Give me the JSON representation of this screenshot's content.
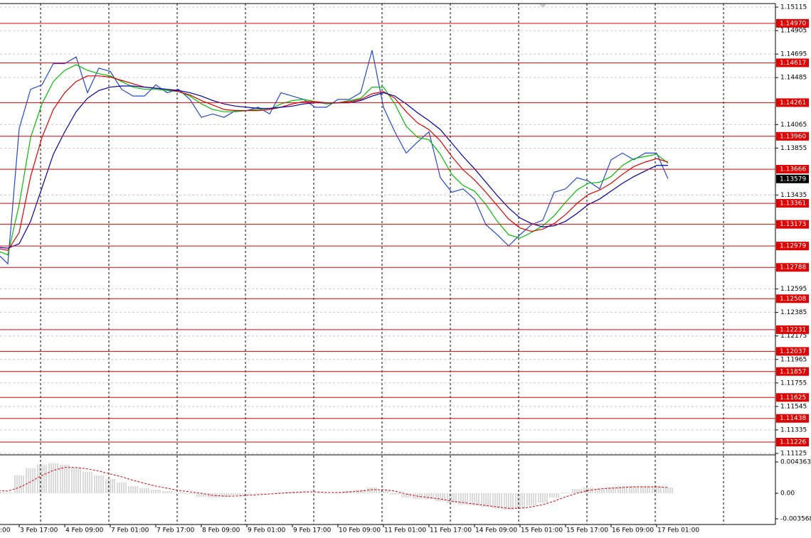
{
  "chart_data": [
    {
      "type": "line",
      "x": [
        ":00",
        null,
        null,
        null,
        "3 Feb 17:00",
        null,
        null,
        null,
        "4 Feb 09:00",
        null,
        null,
        null,
        "7 Feb 01:00",
        null,
        null,
        null,
        "7 Feb 17:00",
        null,
        null,
        null,
        "8 Feb 09:00",
        null,
        null,
        null,
        "9 Feb 01:00",
        null,
        null,
        null,
        "9 Feb 17:00",
        null,
        null,
        null,
        "10 Feb 09:00",
        null,
        null,
        null,
        "11 Feb 01:00",
        null,
        null,
        null,
        "11 Feb 17:00",
        null,
        null,
        null,
        "14 Feb 09:00",
        null,
        null,
        null,
        "15 Feb 01:00",
        null,
        null,
        null,
        "15 Feb 17:00",
        null,
        null,
        null,
        "16 Feb 09:00",
        null,
        null,
        null,
        "17 Feb 01:00",
        null
      ],
      "series": [
        {
          "color": "#2448d8",
          "values": [
            1.1295,
            1.1295,
            1.1292,
            1.1282,
            1.1403,
            1.1438,
            1.1442,
            1.1461,
            1.1461,
            1.1467,
            1.1435,
            1.1457,
            1.1454,
            1.1438,
            1.1432,
            1.1432,
            1.1442,
            1.1435,
            1.1438,
            1.1429,
            1.1413,
            1.1416,
            1.1413,
            1.1419,
            1.1419,
            1.1422,
            1.1416,
            1.1435,
            1.1432,
            1.1429,
            1.1422,
            1.1422,
            1.1429,
            1.1429,
            1.1435,
            1.1473,
            1.1422,
            1.14,
            1.1381,
            1.1391,
            1.14,
            1.1359,
            1.1346,
            1.1349,
            1.134,
            1.1317,
            1.1308,
            1.1298,
            1.1308,
            1.1317,
            1.1321,
            1.1346,
            1.1349,
            1.1359,
            1.1356,
            1.1349,
            1.1375,
            1.1381,
            1.1375,
            1.1381,
            1.1381,
            1.1358
          ]
        },
        {
          "color": "#00c000",
          "values": [
            1.1296,
            1.1296,
            1.1294,
            1.129,
            1.1335,
            1.1395,
            1.1425,
            1.1445,
            1.1455,
            1.146,
            1.1455,
            1.1452,
            1.145,
            1.1445,
            1.144,
            1.1438,
            1.1438,
            1.1437,
            1.1436,
            1.1432,
            1.1425,
            1.142,
            1.1418,
            1.1418,
            1.1419,
            1.142,
            1.142,
            1.1425,
            1.1428,
            1.1429,
            1.1427,
            1.1425,
            1.1426,
            1.1428,
            1.143,
            1.144,
            1.144,
            1.1425,
            1.1405,
            1.1395,
            1.1393,
            1.138,
            1.1362,
            1.1352,
            1.1347,
            1.1335,
            1.132,
            1.1308,
            1.1305,
            1.131,
            1.1316,
            1.1325,
            1.1337,
            1.1348,
            1.1354,
            1.1355,
            1.136,
            1.137,
            1.1376,
            1.1378,
            1.138,
            1.1372
          ]
        },
        {
          "color": "#e00000",
          "values": [
            1.1297,
            1.1297,
            1.1296,
            1.1294,
            1.131,
            1.136,
            1.1395,
            1.142,
            1.1435,
            1.1445,
            1.145,
            1.145,
            1.1449,
            1.1446,
            1.1443,
            1.144,
            1.1439,
            1.1438,
            1.1436,
            1.1433,
            1.1428,
            1.1424,
            1.142,
            1.1419,
            1.1419,
            1.1419,
            1.142,
            1.1422,
            1.1425,
            1.1427,
            1.1427,
            1.1426,
            1.1426,
            1.1427,
            1.1429,
            1.1434,
            1.1436,
            1.143,
            1.1418,
            1.1408,
            1.1402,
            1.1392,
            1.1378,
            1.1366,
            1.1357,
            1.1346,
            1.1334,
            1.1322,
            1.1314,
            1.1311,
            1.1313,
            1.1318,
            1.1326,
            1.1336,
            1.1344,
            1.1348,
            1.1354,
            1.1362,
            1.1369,
            1.1373,
            1.1376,
            1.1373
          ]
        },
        {
          "color": "#0000b0",
          "values": [
            1.1298,
            1.1298,
            1.1297,
            1.1296,
            1.13,
            1.132,
            1.135,
            1.138,
            1.14,
            1.1418,
            1.143,
            1.1437,
            1.144,
            1.1441,
            1.1441,
            1.144,
            1.1439,
            1.1438,
            1.1437,
            1.1435,
            1.1432,
            1.1428,
            1.1425,
            1.1423,
            1.1422,
            1.1421,
            1.1421,
            1.1422,
            1.1423,
            1.1425,
            1.1426,
            1.1426,
            1.1426,
            1.1426,
            1.1428,
            1.1432,
            1.1435,
            1.1432,
            1.1425,
            1.1417,
            1.141,
            1.1402,
            1.139,
            1.1378,
            1.1367,
            1.1355,
            1.1343,
            1.1332,
            1.1323,
            1.1318,
            1.1315,
            1.1316,
            1.132,
            1.1327,
            1.1335,
            1.134,
            1.1347,
            1.1354,
            1.136,
            1.1365,
            1.137,
            1.137
          ]
        }
      ],
      "ylim": [
        1.11112,
        1.15147
      ],
      "yticks": [
        1.15115,
        1.14905,
        1.14695,
        1.14485,
        1.14065,
        1.13855,
        1.13435,
        1.12595,
        1.12385,
        1.12175,
        1.11965,
        1.11755,
        1.11545,
        1.11335,
        1.11125
      ],
      "grid": true,
      "levels": [
        {
          "value": 1.1497,
          "label": "1.14970"
        },
        1.14617,
        1.14261,
        {
          "value": 1.1396,
          "label": "1.13960"
        },
        1.13666,
        1.13361,
        1.13173,
        1.12979,
        1.12788,
        1.12508,
        1.12231,
        1.12037,
        1.11857,
        1.11625,
        1.11438,
        1.11226
      ],
      "level_color": "#e00000",
      "last_price": 1.13579
    },
    {
      "type": "macd",
      "series": [
        {
          "style": "bar",
          "color": "#b4b4b4",
          "values": [
            0.0005,
            0.0004,
            0.0002,
            0.0001,
            0.0025,
            0.0035,
            0.004,
            0.0042,
            0.004,
            0.0036,
            0.003,
            0.0025,
            0.002,
            0.0015,
            0.001,
            0.0007,
            0.0005,
            0.0003,
            0.0001,
            -0.0001,
            -0.0005,
            -0.0006,
            -0.0005,
            -0.0003,
            -0.0002,
            -0.0001,
            0.0,
            0.0001,
            0.0002,
            0.0002,
            0.0001,
            0.0,
            0.0001,
            0.0003,
            0.0005,
            0.0008,
            0.0004,
            -0.0002,
            -0.0006,
            -0.0008,
            -0.0008,
            -0.0011,
            -0.0014,
            -0.0016,
            -0.0017,
            -0.0019,
            -0.0021,
            -0.0023,
            -0.0021,
            -0.0017,
            -0.0013,
            -0.0006,
            0.0001,
            0.0006,
            0.0008,
            0.0007,
            0.0009,
            0.001,
            0.001,
            0.001,
            0.001,
            0.0008
          ]
        },
        {
          "style": "dashed",
          "color": "#e00000",
          "values": [
            0.0006,
            0.0005,
            0.0004,
            0.0003,
            0.0008,
            0.0016,
            0.0025,
            0.0032,
            0.0036,
            0.0036,
            0.0034,
            0.0031,
            0.0027,
            0.0023,
            0.0018,
            0.0014,
            0.001,
            0.0007,
            0.0004,
            0.0002,
            0.0,
            -0.0003,
            -0.0004,
            -0.0004,
            -0.0003,
            -0.0002,
            -0.0001,
            0.0,
            0.0001,
            0.0002,
            0.0002,
            0.0001,
            0.0001,
            0.0002,
            0.0003,
            0.0005,
            0.0005,
            0.0003,
            -0.0001,
            -0.0004,
            -0.0006,
            -0.0008,
            -0.0011,
            -0.0013,
            -0.0015,
            -0.0017,
            -0.0019,
            -0.0021,
            -0.0021,
            -0.0019,
            -0.0016,
            -0.0011,
            -0.0005,
            0.0,
            0.0004,
            0.0006,
            0.0007,
            0.0008,
            0.0009,
            0.0009,
            0.0009,
            0.0008
          ]
        }
      ],
      "ylim": [
        -0.00436,
        0.00526
      ],
      "yticks": [
        0.004363,
        {
          "value": 0,
          "label": "0.00"
        },
        -0.003568
      ]
    }
  ]
}
